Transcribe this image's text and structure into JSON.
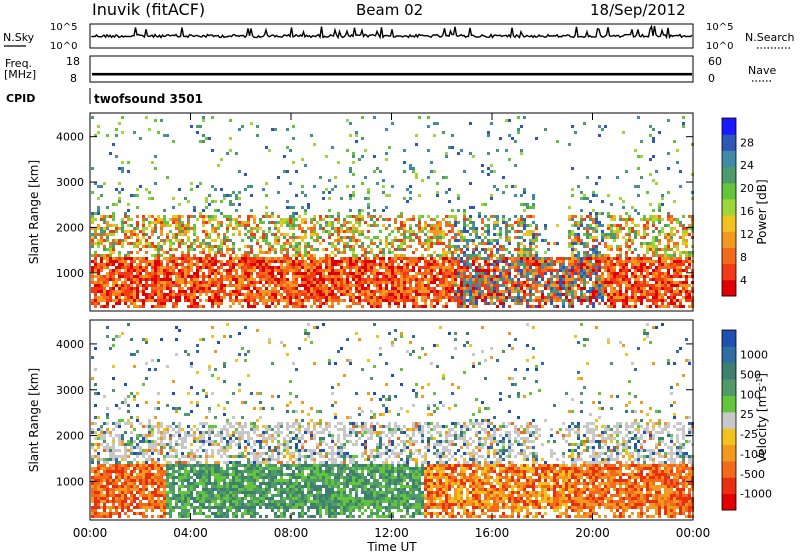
{
  "header": {
    "station": "Inuvik (fitACF)",
    "beam": "Beam 02",
    "date": "18/Sep/2012"
  },
  "side_labels": {
    "nsky": "N.Sky",
    "freq": "Freq.",
    "freq_unit": "[MHz]",
    "cpid": "CPID",
    "nsearch": "N.Search",
    "nave": "Nave"
  },
  "cpid_text": "twofsound 3501",
  "chart_data": [
    {
      "type": "line",
      "name": "noise",
      "left_tick_labels": [
        "10^5",
        "10^0"
      ],
      "right_tick_labels": [
        "10^5",
        "10^0"
      ],
      "y_scale": "log",
      "series_colors": {
        "N.Sky": "#000000",
        "N.Search": "#000000"
      }
    },
    {
      "type": "line",
      "name": "frequency",
      "left_tick_labels": [
        "18",
        "8"
      ],
      "right_tick_labels": [
        "60",
        "0"
      ],
      "ylim_left": [
        8,
        18
      ],
      "ylim_right": [
        0,
        60
      ],
      "value_band_left": [
        10.5,
        11.5
      ]
    },
    {
      "type": "heatmap",
      "name": "power",
      "xlabel": "",
      "ylabel": "Slant Range [km]",
      "ylim": [
        180,
        4500
      ],
      "y_ticks": [
        1000,
        2000,
        3000,
        4000
      ],
      "colorbar": {
        "label": "Power [dB]",
        "tick_labels": [
          "28",
          "24",
          "20",
          "16",
          "12",
          "8",
          "4"
        ],
        "range": [
          0,
          30
        ],
        "colors": [
          "#1a1aff",
          "#2e57b8",
          "#3f8aa8",
          "#4d9a6c",
          "#62c53a",
          "#9ed63a",
          "#f2c21f",
          "#f29a1f",
          "#f26a1a",
          "#f23a14",
          "#e00000"
        ]
      }
    },
    {
      "type": "heatmap",
      "name": "velocity",
      "xlabel": "Time UT",
      "ylabel": "Slant Range [km]",
      "ylim": [
        180,
        4500
      ],
      "y_ticks": [
        1000,
        2000,
        3000,
        4000
      ],
      "x_tick_labels": [
        "00:00",
        "04:00",
        "08:00",
        "12:00",
        "16:00",
        "20:00",
        "00:00"
      ],
      "colorbar": {
        "label": "Velocity [m s^-1]",
        "tick_labels": [
          "1000",
          "500",
          "100",
          "25",
          "-25",
          "-100",
          "-500",
          "-1000"
        ],
        "colors": [
          "#1f4fb0",
          "#2f6ea0",
          "#3f7f6f",
          "#4f9a68",
          "#62c53a",
          "#c8c8c8",
          "#f2c21f",
          "#f29a1f",
          "#f26a1a",
          "#e83010",
          "#e00000"
        ]
      }
    }
  ]
}
